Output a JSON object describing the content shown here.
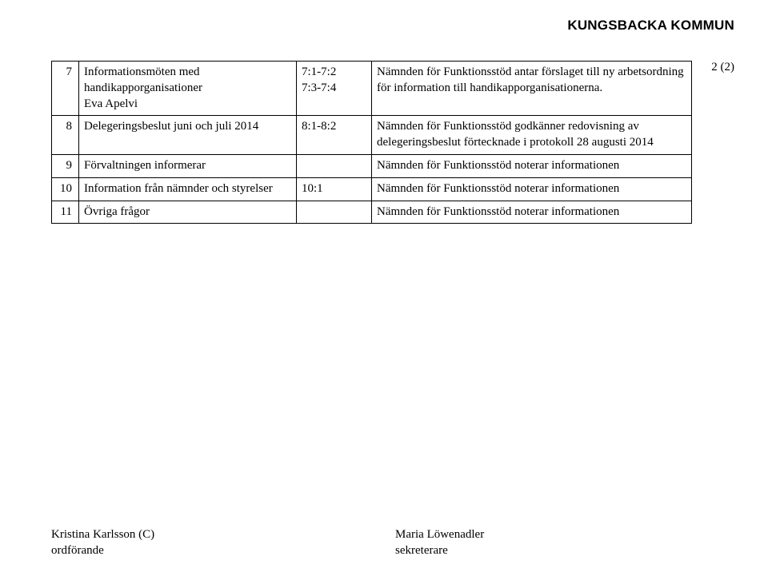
{
  "header": {
    "org": "KUNGSBACKA KOMMUN",
    "page_number": "2 (2)"
  },
  "rows": [
    {
      "index": "7",
      "item": "Informationsmöten med handikapporganisationer\nEva Apelvi",
      "ref": "7:1-7:2\n7:3-7:4",
      "decision": "Nämnden för Funktionsstöd antar förslaget till ny arbetsordning för information till handikapporganisationerna."
    },
    {
      "index": "8",
      "item": "Delegeringsbeslut juni och juli 2014",
      "ref": "8:1-8:2",
      "decision": "Nämnden för Funktionsstöd godkänner redovisning av delegeringsbeslut förtecknade i protokoll 28 augusti 2014"
    },
    {
      "index": "9",
      "item": "Förvaltningen informerar",
      "ref": "",
      "decision": "Nämnden för Funktionsstöd noterar informationen"
    },
    {
      "index": "10",
      "item": "Information från nämnder och styrelser",
      "ref": "10:1",
      "decision": "Nämnden för Funktionsstöd noterar informationen"
    },
    {
      "index": "11",
      "item": "Övriga frågor",
      "ref": "",
      "decision": "Nämnden för Funktionsstöd noterar informationen"
    }
  ],
  "signatures": {
    "left_name": "Kristina Karlsson (C)",
    "left_title": "ordförande",
    "right_name": "Maria Löwenadler",
    "right_title": "sekreterare"
  }
}
